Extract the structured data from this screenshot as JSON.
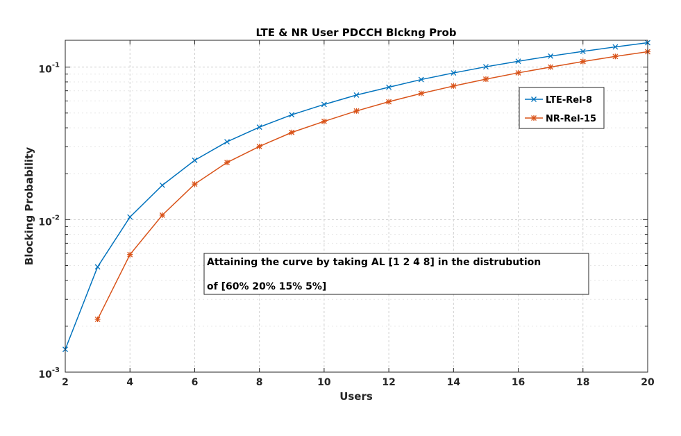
{
  "chart_data": {
    "type": "line",
    "title": "LTE & NR User PDCCH Blckng Prob",
    "xlabel": "Users",
    "ylabel": "Blocking Probability",
    "xlim": [
      2,
      20
    ],
    "ylim": [
      0.001,
      0.15
    ],
    "yscale": "log",
    "grid": true,
    "legend_position": "top-right",
    "x_ticks": [
      "2",
      "4",
      "6",
      "8",
      "10",
      "12",
      "14",
      "16",
      "18",
      "20"
    ],
    "y_ticks": [
      {
        "base": "10",
        "exp": "-3"
      },
      {
        "base": "10",
        "exp": "-2"
      },
      {
        "base": "10",
        "exp": "-1"
      }
    ],
    "series": [
      {
        "name": "LTE-Rel-8",
        "color": "#0072BD",
        "marker": "x",
        "x": [
          2,
          3,
          4,
          5,
          6,
          7,
          8,
          9,
          10,
          11,
          12,
          13,
          14,
          15,
          16,
          17,
          18,
          19,
          20
        ],
        "y": [
          0.00141,
          0.0049,
          0.0104,
          0.0168,
          0.0245,
          0.0324,
          0.0404,
          0.0487,
          0.0569,
          0.0656,
          0.0738,
          0.0829,
          0.0916,
          0.1005,
          0.1093,
          0.1181,
          0.1268,
          0.1357,
          0.1446
        ]
      },
      {
        "name": "NR-Rel-15",
        "color": "#D95319",
        "marker": "*",
        "x": [
          3,
          4,
          5,
          6,
          7,
          8,
          9,
          10,
          11,
          12,
          13,
          14,
          15,
          16,
          17,
          18,
          19,
          20
        ],
        "y": [
          0.00222,
          0.0059,
          0.0107,
          0.0171,
          0.0237,
          0.0302,
          0.0373,
          0.0441,
          0.0516,
          0.0593,
          0.0672,
          0.0752,
          0.0834,
          0.0917,
          0.1001,
          0.1088,
          0.1175,
          0.1262
        ]
      }
    ],
    "annotation": {
      "line1": "Attaining the curve by taking AL [1 2 4 8] in the distrubution",
      "line2": "of  [60% 20% 15% 5%]"
    }
  }
}
